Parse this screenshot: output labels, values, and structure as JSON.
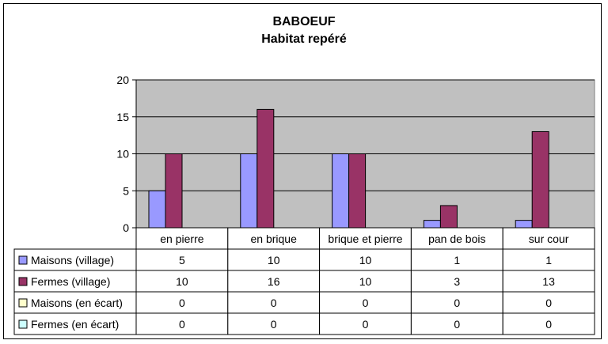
{
  "chart_data": {
    "type": "bar",
    "title": "BABOEUF",
    "subtitle": "Habitat repéré",
    "categories": [
      "en pierre",
      "en brique",
      "brique et pierre",
      "pan de bois",
      "sur cour"
    ],
    "series": [
      {
        "name": "Maisons (village)",
        "color": "#9999ff",
        "values": [
          5,
          10,
          10,
          1,
          1
        ]
      },
      {
        "name": "Fermes (village)",
        "color": "#993366",
        "values": [
          10,
          16,
          10,
          3,
          13
        ]
      },
      {
        "name": "Maisons (en écart)",
        "color": "#ffffcc",
        "values": [
          0,
          0,
          0,
          0,
          0
        ]
      },
      {
        "name": "Fermes (en écart)",
        "color": "#ccffff",
        "values": [
          0,
          0,
          0,
          0,
          0
        ]
      }
    ],
    "ylim": [
      0,
      20
    ],
    "yticks": [
      0,
      5,
      10,
      15,
      20
    ],
    "grid": true,
    "plot_background": "#c0c0c0",
    "legend": "data table below chart"
  }
}
